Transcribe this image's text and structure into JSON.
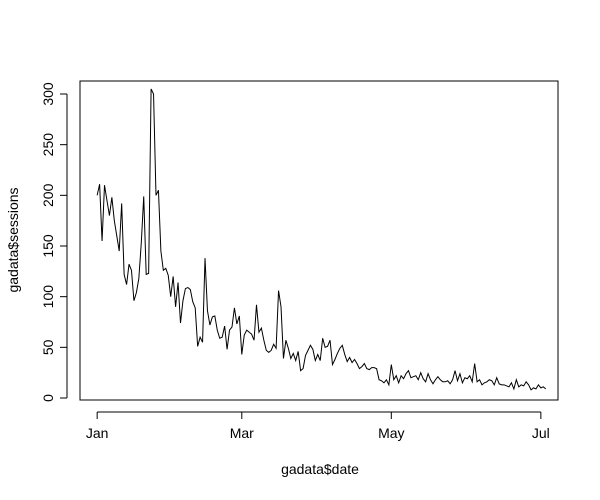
{
  "chart_data": {
    "type": "line",
    "title": "",
    "xlabel": "gadata$date",
    "ylabel": "gadata$sessions",
    "x_ticks": [
      "Jan",
      "Mar",
      "May",
      "Jul"
    ],
    "x_tick_dates": [
      "2017-01-01",
      "2017-03-01",
      "2017-05-01",
      "2017-07-01"
    ],
    "xlim": [
      "2016-12-25",
      "2017-07-08"
    ],
    "y_ticks": [
      0,
      50,
      100,
      150,
      200,
      250,
      300
    ],
    "ylim": [
      0,
      310
    ],
    "line_color": "#000000",
    "x_start": "2017-01-01",
    "series": [
      {
        "values": [
          200,
          211,
          155,
          210,
          195,
          180,
          198,
          175,
          160,
          145,
          192,
          122,
          112,
          132,
          126,
          96,
          104,
          118,
          153,
          199,
          122,
          123,
          305,
          300,
          200,
          205,
          145,
          126,
          128,
          121,
          100,
          120,
          90,
          114,
          74,
          96,
          108,
          109,
          107,
          95,
          89,
          51,
          60,
          55,
          138,
          86,
          72,
          80,
          81,
          67,
          59,
          60,
          71,
          48,
          67,
          70,
          89,
          73,
          81,
          43,
          62,
          67,
          65,
          63,
          57,
          92,
          65,
          69,
          57,
          47,
          45,
          47,
          53,
          49,
          106,
          90,
          39,
          57,
          49,
          39,
          44,
          37,
          46,
          27,
          29,
          42,
          47,
          52,
          48,
          37,
          43,
          37,
          59,
          50,
          51,
          57,
          33,
          38,
          44,
          49,
          52,
          43,
          36,
          40,
          35,
          38,
          34,
          29,
          31,
          34,
          29,
          28,
          30,
          30,
          29,
          18,
          17,
          15,
          18,
          13,
          33,
          18,
          22,
          15,
          22,
          19,
          24,
          27,
          20,
          21,
          22,
          18,
          25,
          19,
          16,
          24,
          18,
          14,
          18,
          21,
          18,
          16,
          16,
          17,
          14,
          18,
          27,
          17,
          24,
          15,
          20,
          19,
          22,
          16,
          34,
          16,
          18,
          13,
          15,
          16,
          18,
          17,
          13,
          20,
          14,
          13,
          13,
          12,
          11,
          15,
          9,
          18,
          11,
          13,
          12,
          16,
          13,
          8,
          10,
          9,
          13,
          10,
          11,
          9
        ]
      }
    ]
  }
}
